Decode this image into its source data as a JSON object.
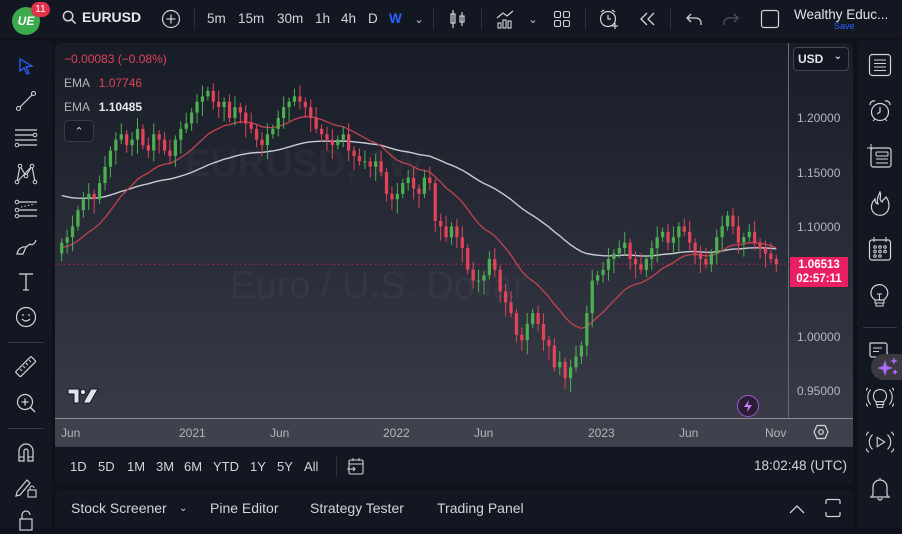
{
  "header": {
    "logo_text": "UE",
    "notification_count": "11",
    "symbol": "EURUSD",
    "timeframes": [
      "5m",
      "15m",
      "30m",
      "1h",
      "4h",
      "D",
      "W"
    ],
    "active_timeframe": "W",
    "account_name": "Wealthy Educ...",
    "save_label": "Save"
  },
  "legend": {
    "change": "−0.00083 (−0.08%)",
    "ema1_label": "EMA",
    "ema1_value": "1.07746",
    "ema2_label": "EMA",
    "ema2_value": "1.10485"
  },
  "price_axis": {
    "currency": "USD",
    "labels": [
      "1.20000",
      "1.15000",
      "1.10000",
      "1.00000",
      "0.95000"
    ],
    "current_price": "1.06513",
    "countdown": "02:57:11"
  },
  "time_axis": {
    "labels": [
      "Jun",
      "2021",
      "Jun",
      "2022",
      "Jun",
      "2023",
      "Jun",
      "Nov"
    ]
  },
  "ranges": [
    "1D",
    "5D",
    "1M",
    "3M",
    "6M",
    "YTD",
    "1Y",
    "5Y",
    "All"
  ],
  "clock": "18:02:48 (UTC)",
  "bottom_tabs": [
    "Stock Screener",
    "Pine Editor",
    "Strategy Tester",
    "Trading Panel"
  ],
  "watermark": {
    "line1": "EURUSD, 1W",
    "line2": "Euro / U.S. Dollar"
  },
  "colors": {
    "up": "#4caf50",
    "down": "#e0435a",
    "ema_fast": "#c2434f",
    "ema_slow": "#c9ccd4",
    "price_line": "#e91e63",
    "active_tf": "#2962ff"
  },
  "chart_data": {
    "type": "candlestick",
    "title": "EURUSD, 1W",
    "subtitle": "Euro / U.S. Dollar",
    "xlabel": "",
    "ylabel": "USD",
    "ylim": [
      0.935,
      1.245
    ],
    "x_ticks": [
      "Jun 2020",
      "2021",
      "Jun 2021",
      "2022",
      "Jun 2022",
      "2023",
      "Jun 2023",
      "Nov 2023"
    ],
    "y_ticks": [
      0.95,
      1.0,
      1.1,
      1.15,
      1.2
    ],
    "current_price": 1.06513,
    "series": [
      {
        "name": "EMA (fast)",
        "last_value": 1.07746,
        "color": "#c2434f"
      },
      {
        "name": "EMA (slow)",
        "last_value": 1.10485,
        "color": "#c9ccd4"
      }
    ],
    "close_approx": [
      1.085,
      1.09,
      1.1,
      1.115,
      1.125,
      1.13,
      1.125,
      1.14,
      1.155,
      1.17,
      1.18,
      1.185,
      1.175,
      1.18,
      1.19,
      1.175,
      1.17,
      1.185,
      1.18,
      1.17,
      1.165,
      1.18,
      1.19,
      1.195,
      1.205,
      1.215,
      1.22,
      1.225,
      1.215,
      1.21,
      1.215,
      1.2,
      1.21,
      1.205,
      1.195,
      1.19,
      1.18,
      1.175,
      1.185,
      1.19,
      1.2,
      1.21,
      1.215,
      1.22,
      1.215,
      1.21,
      1.2,
      1.19,
      1.185,
      1.18,
      1.175,
      1.18,
      1.185,
      1.17,
      1.165,
      1.16,
      1.16,
      1.155,
      1.16,
      1.15,
      1.13,
      1.125,
      1.13,
      1.14,
      1.145,
      1.135,
      1.13,
      1.145,
      1.14,
      1.105,
      1.1,
      1.09,
      1.1,
      1.09,
      1.08,
      1.06,
      1.05,
      1.05,
      1.055,
      1.07,
      1.06,
      1.04,
      1.03,
      1.02,
      1.0,
      0.995,
      1.01,
      1.02,
      1.01,
      0.995,
      0.99,
      0.97,
      0.975,
      0.96,
      0.97,
      0.98,
      0.99,
      1.02,
      1.05,
      1.055,
      1.06,
      1.07,
      1.075,
      1.08,
      1.085,
      1.07,
      1.065,
      1.06,
      1.07,
      1.08,
      1.09,
      1.095,
      1.085,
      1.09,
      1.1,
      1.095,
      1.085,
      1.075,
      1.07,
      1.065,
      1.075,
      1.09,
      1.1,
      1.11,
      1.1,
      1.085,
      1.09,
      1.095,
      1.085,
      1.08,
      1.075,
      1.07,
      1.065
    ]
  }
}
